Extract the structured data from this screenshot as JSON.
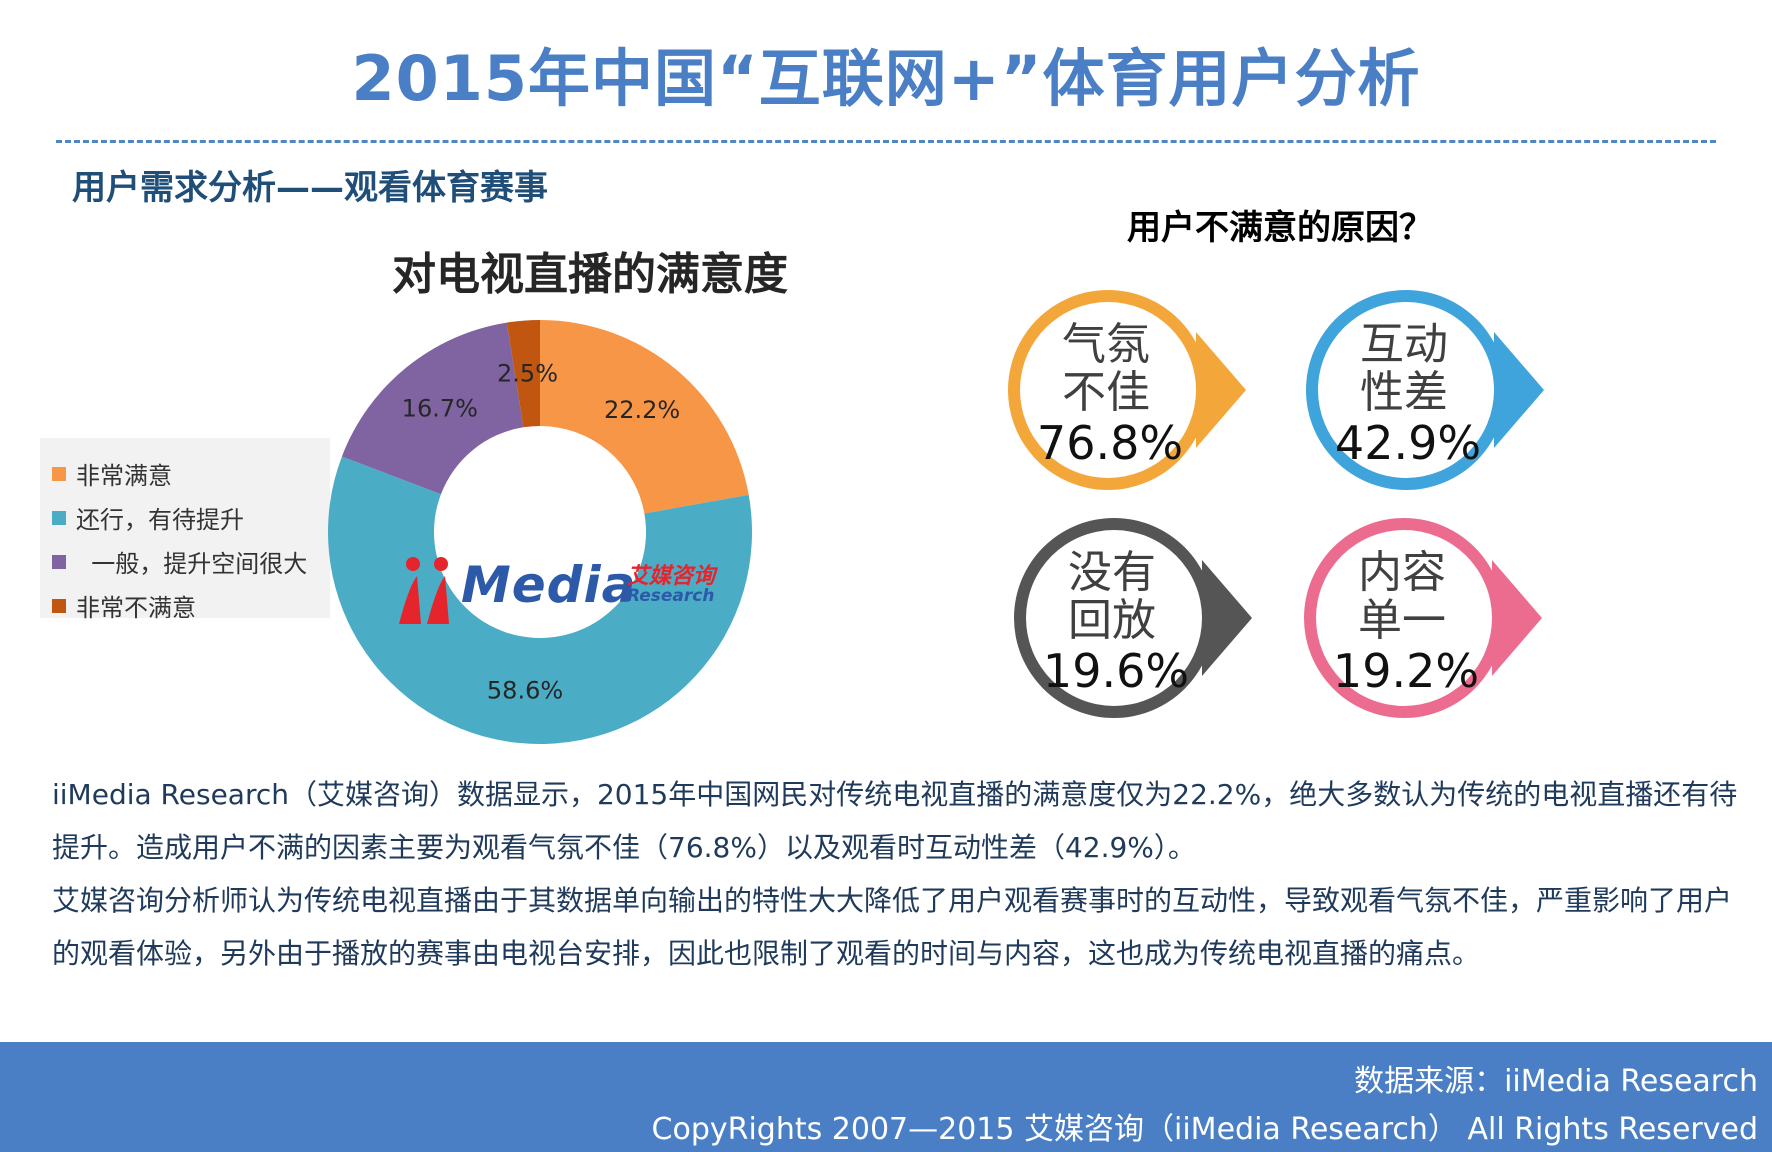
{
  "header": {
    "title": "2015年中国“互联网+”体育用户分析",
    "section": "用户需求分析——观看体育赛事"
  },
  "chart_data": {
    "type": "pie",
    "title": "对电视直播的满意度",
    "categories": [
      "非常满意",
      "还行，有待提升",
      "一般，提升空间很大",
      "非常不满意"
    ],
    "values": [
      22.2,
      58.6,
      16.7,
      2.5
    ],
    "value_labels": [
      "22.2%",
      "58.6%",
      "16.7%",
      "2.5%"
    ],
    "colors": [
      "#f79646",
      "#4bacc6",
      "#8064a2",
      "#c0560f"
    ],
    "legend_placement": "left",
    "donut": true
  },
  "legend": {
    "items": [
      {
        "label": "非常满意",
        "color": "#f79646"
      },
      {
        "label": "还行，有待提升",
        "color": "#4bacc6"
      },
      {
        "label": "  一般，提升空间很大",
        "color": "#8064a2"
      },
      {
        "label": "非常不满意",
        "color": "#c0560f"
      }
    ]
  },
  "watermark": {
    "brand": "Media",
    "cn": "艾媒咨询",
    "en": "Research"
  },
  "reasons": {
    "title": "用户不满意的原因？",
    "items": [
      {
        "line1": "气氛",
        "line2": "不佳",
        "value": "76.8%",
        "color": "#f3a73b"
      },
      {
        "line1": "互动",
        "line2": "性差",
        "value": "42.9%",
        "color": "#3fa3dc"
      },
      {
        "line1": "没有",
        "line2": "回放",
        "value": "19.6%",
        "color": "#555555"
      },
      {
        "line1": "内容",
        "line2": "单一",
        "value": "19.2%",
        "color": "#ec6c8f"
      }
    ]
  },
  "description": {
    "p1": "iiMedia Research（艾媒咨询）数据显示，2015年中国网民对传统电视直播的满意度仅为22.2%，绝大多数认为传统的电视直播还有待提升。造成用户不满的因素主要为观看气氛不佳（76.8%）以及观看时互动性差（42.9%）。",
    "p2": "艾媒咨询分析师认为传统电视直播由于其数据单向输出的特性大大降低了用户观看赛事时的互动性，导致观看气氛不佳，严重影响了用户的观看体验，另外由于播放的赛事由电视台安排，因此也限制了观看的时间与内容，这也成为传统电视直播的痛点。"
  },
  "footer": {
    "source": "数据来源：iiMedia Research",
    "copyright": "CopyRights 2007—2015 艾媒咨询（iiMedia Research） All Rights Reserved"
  }
}
